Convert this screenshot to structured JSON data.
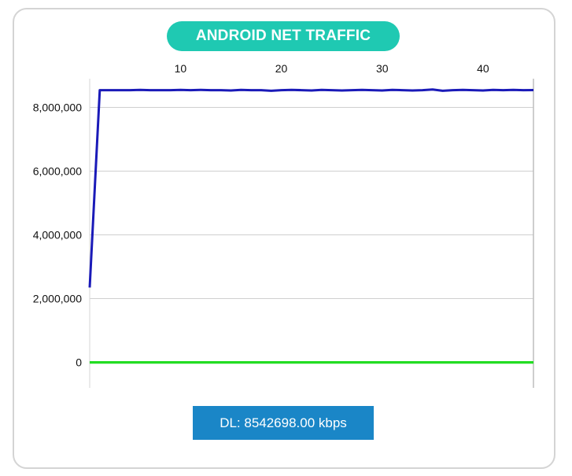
{
  "title": "ANDROID NET TRAFFIC",
  "status_text": "DL: 8542698.00 kbps",
  "colors": {
    "title_bg": "#1fc9b2",
    "status_bg": "#1a86c7",
    "download_series": "#1a1ab8",
    "upload_series": "#22dd22"
  },
  "chart_data": {
    "type": "line",
    "title": "",
    "xlabel": "",
    "ylabel": "",
    "x_axis_position": "top",
    "xlim": [
      1,
      45
    ],
    "ylim": [
      -800000,
      8900000
    ],
    "x_ticks": [
      10,
      20,
      30,
      40
    ],
    "x_tick_labels": [
      "10",
      "20",
      "30",
      "40"
    ],
    "y_ticks": [
      0,
      2000000,
      4000000,
      6000000,
      8000000
    ],
    "y_tick_labels": [
      "0",
      "2,000,000",
      "4,000,000",
      "6,000,000",
      "8,000,000"
    ],
    "grid": true,
    "series": [
      {
        "color": "#1a1ab8",
        "x": [
          1,
          2,
          3,
          4,
          5,
          6,
          7,
          8,
          9,
          10,
          11,
          12,
          13,
          14,
          15,
          16,
          17,
          18,
          19,
          20,
          21,
          22,
          23,
          24,
          25,
          26,
          27,
          28,
          29,
          30,
          31,
          32,
          33,
          34,
          35,
          36,
          37,
          38,
          39,
          40,
          41,
          42,
          43,
          44,
          45
        ],
        "values": [
          2350000,
          8540000,
          8540000,
          8540000,
          8540000,
          8550000,
          8540000,
          8540000,
          8540000,
          8550000,
          8540000,
          8550000,
          8540000,
          8540000,
          8530000,
          8550000,
          8540000,
          8540000,
          8520000,
          8540000,
          8550000,
          8540000,
          8530000,
          8550000,
          8540000,
          8530000,
          8540000,
          8550000,
          8540000,
          8530000,
          8550000,
          8540000,
          8530000,
          8540000,
          8560000,
          8520000,
          8540000,
          8550000,
          8540000,
          8530000,
          8550000,
          8540000,
          8550000,
          8540000,
          8542698
        ]
      },
      {
        "color": "#22dd22",
        "x": [
          1,
          45
        ],
        "values": [
          0,
          0
        ]
      }
    ]
  }
}
